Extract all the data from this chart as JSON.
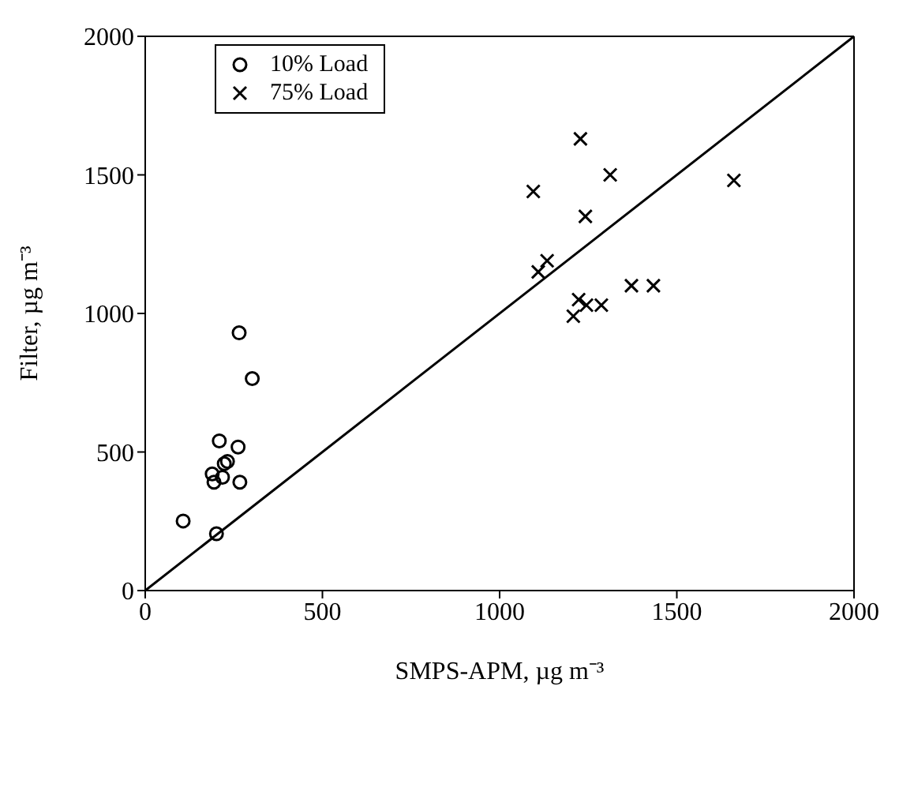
{
  "chart_data": {
    "type": "scatter",
    "xlabel": "SMPS-APM, µg m⁻³",
    "ylabel": "Filter, µg m⁻³",
    "xlim": [
      0,
      2000
    ],
    "ylim": [
      0,
      2000
    ],
    "xticks": [
      0,
      500,
      1000,
      1500,
      2000
    ],
    "yticks": [
      0,
      500,
      1000,
      1500,
      2000
    ],
    "legend": "top left",
    "series": [
      {
        "name": "10% Load",
        "color": "#000000",
        "marker": "circle",
        "x": [
          265,
          302,
          209,
          262,
          232,
          223,
          189,
          218,
          194,
          267,
          107,
          201
        ],
        "values": [
          930,
          765,
          540,
          518,
          466,
          458,
          421,
          409,
          391,
          391,
          251,
          205
        ]
      },
      {
        "name": "75% Load",
        "color": "#000000",
        "marker": "cross",
        "x": [
          1228,
          1312,
          1095,
          1661,
          1242,
          1134,
          1109,
          1372,
          1434,
          1223,
          1245,
          1287,
          1208
        ],
        "values": [
          1630,
          1500,
          1440,
          1480,
          1350,
          1190,
          1150,
          1100,
          1100,
          1050,
          1030,
          1030,
          990
        ]
      },
      {
        "type": "line",
        "color": "#000000",
        "marker": "none",
        "x": [
          0,
          2000
        ],
        "values": [
          0,
          2000
        ]
      }
    ]
  }
}
